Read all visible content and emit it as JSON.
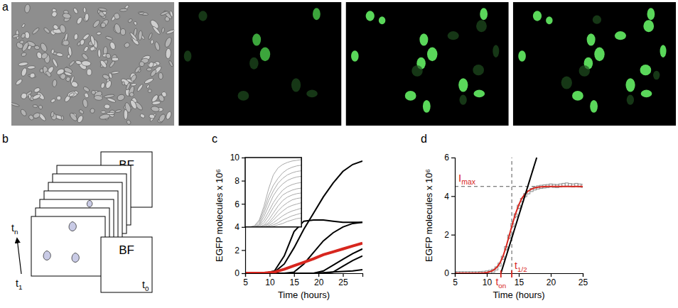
{
  "figure": {
    "panel_letters": [
      "a",
      "b",
      "c",
      "d"
    ],
    "schematic": {
      "frame_label": "BF",
      "time_labels": [
        {
          "text": "t",
          "sub": "0"
        },
        {
          "text": "t",
          "sub": "1"
        },
        {
          "text": "t",
          "sub": "n"
        }
      ]
    }
  },
  "chart_data": [
    {
      "type": "line",
      "x": [
        5,
        7,
        9,
        11,
        13,
        15,
        17,
        19,
        21,
        23,
        25,
        27,
        29
      ],
      "xlim": [
        5,
        29
      ],
      "ylim": [
        0,
        10
      ],
      "xticks": [
        5,
        10,
        15,
        20,
        25
      ],
      "yticks": [
        0,
        2,
        4,
        6,
        8,
        10
      ],
      "x_label": "Time (hours)",
      "y_label": "EGFP molecules x 10⁶",
      "series": [
        {
          "color": "#000000",
          "line_style": "solid",
          "values": [
            0,
            0,
            0,
            0.1,
            0.8,
            2.2,
            3.8,
            5.2,
            6.6,
            7.8,
            8.8,
            9.4,
            9.7
          ]
        },
        {
          "color": "#000000",
          "line_style": "solid",
          "values": [
            0,
            0,
            0,
            0.2,
            1.5,
            3.6,
            4.5,
            4.6,
            4.6,
            4.5,
            4.4,
            4.4,
            4.4
          ]
        },
        {
          "color": "#000000",
          "line_style": "solid",
          "values": [
            0,
            0,
            0,
            0,
            0,
            0.1,
            0.8,
            1.8,
            2.8,
            3.5,
            4,
            4.3,
            4.4
          ]
        },
        {
          "color": "#000000",
          "line_style": "solid",
          "values": [
            0,
            0,
            0,
            0,
            0,
            0,
            0,
            0,
            0.2,
            0.7,
            1.2,
            1.7,
            2.1
          ]
        },
        {
          "color": "#000000",
          "line_style": "solid",
          "values": [
            0,
            0,
            0,
            0,
            0,
            0,
            0,
            0,
            0,
            0.1,
            0.6,
            1.1,
            1.5
          ]
        },
        {
          "color": "#000000",
          "line_style": "solid",
          "values": [
            0,
            0,
            0,
            0,
            0,
            0,
            0,
            0,
            0.05,
            0.1,
            0.15,
            0.2,
            0.3
          ]
        },
        {
          "color": "#d7261e",
          "line_style": "thick",
          "values": [
            0,
            0,
            0.02,
            0.1,
            0.35,
            0.65,
            0.95,
            1.25,
            1.6,
            1.85,
            2.1,
            2.35,
            2.6
          ]
        }
      ]
    },
    {
      "type": "line",
      "tick_labels": false,
      "x": [
        5,
        7,
        9,
        11,
        13,
        15,
        17,
        19,
        21,
        23,
        25,
        27,
        29
      ],
      "xlim": [
        5,
        29
      ],
      "ylim": [
        0,
        10
      ],
      "series": [
        {
          "color": "#aaaaaa",
          "values": [
            0,
            0,
            0.2,
            1,
            3,
            5.5,
            7.5,
            8.5,
            9,
            9.3,
            9.5,
            9.6,
            9.7
          ]
        },
        {
          "color": "#aaaaaa",
          "values": [
            0,
            0,
            0.1,
            0.8,
            2.5,
            4.5,
            6,
            7,
            7.8,
            8.3,
            8.6,
            8.8,
            8.9
          ]
        },
        {
          "color": "#aaaaaa",
          "values": [
            0,
            0,
            0,
            0.5,
            2,
            3.8,
            5.2,
            6.3,
            7,
            7.5,
            7.8,
            8,
            8.1
          ]
        },
        {
          "color": "#aaaaaa",
          "values": [
            0,
            0,
            0,
            0.3,
            1.5,
            3,
            4.5,
            5.5,
            6.2,
            6.7,
            7,
            7.2,
            7.3
          ]
        },
        {
          "color": "#aaaaaa",
          "values": [
            0,
            0,
            0,
            0.2,
            1,
            2.2,
            3.5,
            4.5,
            5.3,
            5.8,
            6.1,
            6.3,
            6.4
          ]
        },
        {
          "color": "#aaaaaa",
          "values": [
            0,
            0,
            0,
            0.1,
            0.6,
            1.6,
            2.8,
            3.8,
            4.6,
            5,
            5.3,
            5.5,
            5.6
          ]
        },
        {
          "color": "#aaaaaa",
          "values": [
            0,
            0,
            0,
            0,
            0.3,
            1,
            2,
            3,
            3.8,
            4.3,
            4.6,
            4.8,
            4.9
          ]
        },
        {
          "color": "#aaaaaa",
          "values": [
            0,
            0,
            0,
            0,
            0.2,
            0.6,
            1.4,
            2.3,
            3,
            3.5,
            3.9,
            4.1,
            4.2
          ]
        },
        {
          "color": "#aaaaaa",
          "values": [
            0,
            0,
            0,
            0,
            0.1,
            0.4,
            1,
            1.7,
            2.3,
            2.8,
            3.1,
            3.3,
            3.5
          ]
        },
        {
          "color": "#aaaaaa",
          "values": [
            0,
            0,
            0,
            0,
            0,
            0.2,
            0.6,
            1.1,
            1.6,
            2,
            2.3,
            2.5,
            2.7
          ]
        },
        {
          "color": "#aaaaaa",
          "values": [
            0,
            0,
            0,
            0,
            0,
            0.1,
            0.3,
            0.6,
            1,
            1.3,
            1.6,
            1.8,
            2
          ]
        },
        {
          "color": "#aaaaaa",
          "values": [
            0,
            0,
            0,
            0,
            0,
            0,
            0.1,
            0.3,
            0.5,
            0.8,
            1,
            1.2,
            1.3
          ]
        }
      ]
    },
    {
      "type": "line",
      "x": [
        5,
        5.5,
        6,
        6.5,
        7,
        7.5,
        8,
        8.5,
        9,
        9.5,
        10,
        10.5,
        11,
        11.5,
        12,
        12.5,
        13,
        13.5,
        14,
        14.5,
        15,
        15.5,
        16,
        16.5,
        17,
        17.5,
        18,
        18.5,
        19,
        19.5,
        20,
        20.5,
        21,
        21.5,
        22,
        22.5,
        23,
        23.5,
        24,
        24.5,
        25
      ],
      "xlim": [
        5,
        25
      ],
      "ylim": [
        0,
        6
      ],
      "xticks": [
        5,
        10,
        15,
        20,
        25
      ],
      "yticks": [
        0,
        2,
        4,
        6
      ],
      "x_label": "Time (hours)",
      "y_label": "EGFP molecules x 10⁶",
      "series": [
        {
          "type": "scatter",
          "marker": "square",
          "color": "#8c8c8c",
          "values": [
            0,
            0,
            0,
            0,
            0,
            0,
            0,
            0,
            0.01,
            0.02,
            0.04,
            0.07,
            0.13,
            0.25,
            0.45,
            0.8,
            1.3,
            1.9,
            2.5,
            3,
            3.45,
            3.8,
            4.05,
            4.2,
            4.32,
            4.4,
            4.45,
            4.48,
            4.5,
            4.52,
            4.55,
            4.53,
            4.52,
            4.55,
            4.58,
            4.6,
            4.57,
            4.55,
            4.58,
            4.55,
            4.53
          ],
          "errors": [
            0.02,
            0.02,
            0.02,
            0.02,
            0.02,
            0.02,
            0.02,
            0.02,
            0.03,
            0.03,
            0.04,
            0.05,
            0.06,
            0.07,
            0.08,
            0.1,
            0.12,
            0.14,
            0.15,
            0.15,
            0.14,
            0.13,
            0.12,
            0.11,
            0.1,
            0.1,
            0.09,
            0.09,
            0.09,
            0.08,
            0.08,
            0.08,
            0.08,
            0.08,
            0.08,
            0.08,
            0.08,
            0.08,
            0.08,
            0.08,
            0.08
          ]
        },
        {
          "type": "line",
          "color": "#d7261e",
          "line_style": "solid",
          "values": [
            0,
            0,
            0,
            0,
            0,
            0,
            0,
            0,
            0.01,
            0.02,
            0.04,
            0.08,
            0.15,
            0.28,
            0.5,
            0.85,
            1.35,
            1.95,
            2.55,
            3.1,
            3.55,
            3.9,
            4.12,
            4.27,
            4.37,
            4.43,
            4.46,
            4.48,
            4.49,
            4.5,
            4.5,
            4.5,
            4.5,
            4.5,
            4.5,
            4.5,
            4.5,
            4.5,
            4.5,
            4.5,
            4.5
          ]
        },
        {
          "type": "line",
          "color": "#000000",
          "line_style": "solid",
          "x": [
            12.2,
            17.8
          ],
          "values": [
            0,
            6
          ]
        }
      ],
      "annotations": [
        {
          "text": "I",
          "sub": "max",
          "y": 4.5,
          "color": "#d7261e",
          "line_style": "dashed"
        },
        {
          "text": "t",
          "sub": "on",
          "x": 12.2,
          "color": "#d7261e"
        },
        {
          "text": "t",
          "sub": "1/2",
          "x": 13.9,
          "color": "#d7261e",
          "line_style": "dashed"
        }
      ]
    }
  ]
}
